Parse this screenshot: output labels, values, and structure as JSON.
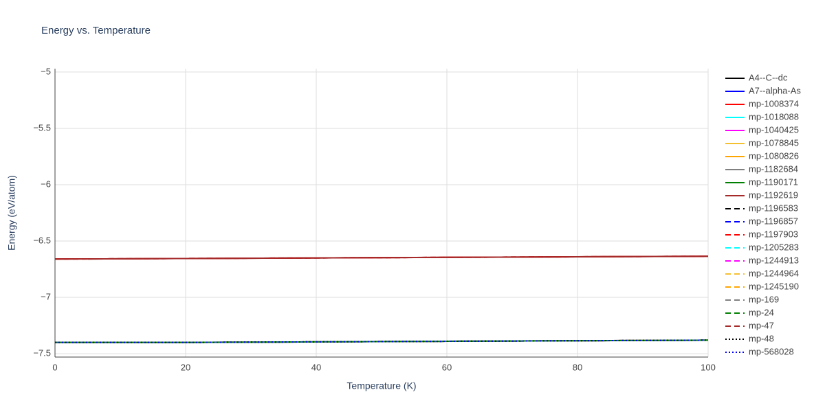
{
  "chart_data": {
    "type": "line",
    "title": "Energy vs. Temperature",
    "x_label": "Temperature (K)",
    "y_label": "Energy (eV/atom)",
    "x": [
      0,
      20,
      40,
      60,
      80,
      100
    ],
    "xlim": [
      0,
      100
    ],
    "xticks": [
      0,
      20,
      40,
      60,
      80,
      100
    ],
    "ylim": [
      -7.53,
      -4.97
    ],
    "yticks": [
      {
        "value": -7.5,
        "label": "−7.5"
      },
      {
        "value": -7,
        "label": "−7"
      },
      {
        "value": -6.5,
        "label": "−6.5"
      },
      {
        "value": -6,
        "label": "−6"
      },
      {
        "value": -5.5,
        "label": "−5.5"
      },
      {
        "value": -5,
        "label": "−5"
      }
    ],
    "grid": true,
    "legend": "right",
    "series": [
      {
        "name": "A4--C--dc",
        "color": "#000000",
        "dash": "solid",
        "values": [
          -6.66,
          -6.655,
          -6.65,
          -6.645,
          -6.64,
          -6.635
        ]
      },
      {
        "name": "A7--alpha-As",
        "color": "#0000ff",
        "dash": "solid",
        "values": [
          -7.4,
          -7.4,
          -7.395,
          -7.39,
          -7.385,
          -7.38
        ]
      },
      {
        "name": "mp-1008374",
        "color": "#ff0000",
        "dash": "solid",
        "values": [
          -6.66,
          -6.655,
          -6.65,
          -6.645,
          -6.64,
          -6.635
        ]
      },
      {
        "name": "mp-1018088",
        "color": "#00ffff",
        "dash": "solid",
        "values": [
          -7.4,
          -7.4,
          -7.395,
          -7.39,
          -7.385,
          -7.38
        ]
      },
      {
        "name": "mp-1040425",
        "color": "#ff00ff",
        "dash": "solid",
        "values": [
          -7.4,
          -7.4,
          -7.395,
          -7.39,
          -7.385,
          -7.38
        ]
      },
      {
        "name": "mp-1078845",
        "color": "#f5c030",
        "dash": "solid",
        "values": [
          -7.4,
          -7.4,
          -7.395,
          -7.39,
          -7.385,
          -7.38
        ]
      },
      {
        "name": "mp-1080826",
        "color": "#ffa500",
        "dash": "solid",
        "values": [
          -7.4,
          -7.4,
          -7.395,
          -7.39,
          -7.385,
          -7.38
        ]
      },
      {
        "name": "mp-1182684",
        "color": "#808080",
        "dash": "solid",
        "values": [
          -7.4,
          -7.4,
          -7.395,
          -7.39,
          -7.385,
          -7.38
        ]
      },
      {
        "name": "mp-1190171",
        "color": "#008000",
        "dash": "solid",
        "values": [
          -7.4,
          -7.4,
          -7.395,
          -7.39,
          -7.385,
          -7.38
        ]
      },
      {
        "name": "mp-1192619",
        "color": "#a52a2a",
        "dash": "solid",
        "values": [
          -6.66,
          -6.655,
          -6.65,
          -6.645,
          -6.64,
          -6.635
        ]
      },
      {
        "name": "mp-1196583",
        "color": "#000000",
        "dash": "dash",
        "values": [
          -7.4,
          -7.4,
          -7.395,
          -7.39,
          -7.385,
          -7.38
        ]
      },
      {
        "name": "mp-1196857",
        "color": "#0000ff",
        "dash": "dash",
        "values": [
          -7.4,
          -7.4,
          -7.395,
          -7.39,
          -7.385,
          -7.38
        ]
      },
      {
        "name": "mp-1197903",
        "color": "#ff0000",
        "dash": "dash",
        "values": [
          -6.66,
          -6.655,
          -6.65,
          -6.645,
          -6.64,
          -6.635
        ]
      },
      {
        "name": "mp-1205283",
        "color": "#00ffff",
        "dash": "dash",
        "values": [
          -7.4,
          -7.4,
          -7.395,
          -7.39,
          -7.385,
          -7.38
        ]
      },
      {
        "name": "mp-1244913",
        "color": "#ff00ff",
        "dash": "dash",
        "values": [
          -7.4,
          -7.4,
          -7.395,
          -7.39,
          -7.385,
          -7.38
        ]
      },
      {
        "name": "mp-1244964",
        "color": "#f5c030",
        "dash": "dash",
        "values": [
          -7.4,
          -7.4,
          -7.395,
          -7.39,
          -7.385,
          -7.38
        ]
      },
      {
        "name": "mp-1245190",
        "color": "#ffa500",
        "dash": "dash",
        "values": [
          -7.4,
          -7.4,
          -7.395,
          -7.39,
          -7.385,
          -7.38
        ]
      },
      {
        "name": "mp-169",
        "color": "#808080",
        "dash": "dash",
        "values": [
          -7.4,
          -7.4,
          -7.395,
          -7.39,
          -7.385,
          -7.38
        ]
      },
      {
        "name": "mp-24",
        "color": "#008000",
        "dash": "dash",
        "values": [
          -7.4,
          -7.4,
          -7.395,
          -7.39,
          -7.385,
          -7.38
        ]
      },
      {
        "name": "mp-47",
        "color": "#a52a2a",
        "dash": "dash",
        "values": [
          -6.66,
          -6.655,
          -6.65,
          -6.645,
          -6.64,
          -6.635
        ]
      },
      {
        "name": "mp-48",
        "color": "#000000",
        "dash": "dot",
        "values": [
          -7.4,
          -7.4,
          -7.395,
          -7.39,
          -7.385,
          -7.38
        ]
      },
      {
        "name": "mp-568028",
        "color": "#0000ff",
        "dash": "dot",
        "values": [
          -7.4,
          -7.4,
          -7.395,
          -7.39,
          -7.385,
          -7.38
        ]
      }
    ]
  }
}
